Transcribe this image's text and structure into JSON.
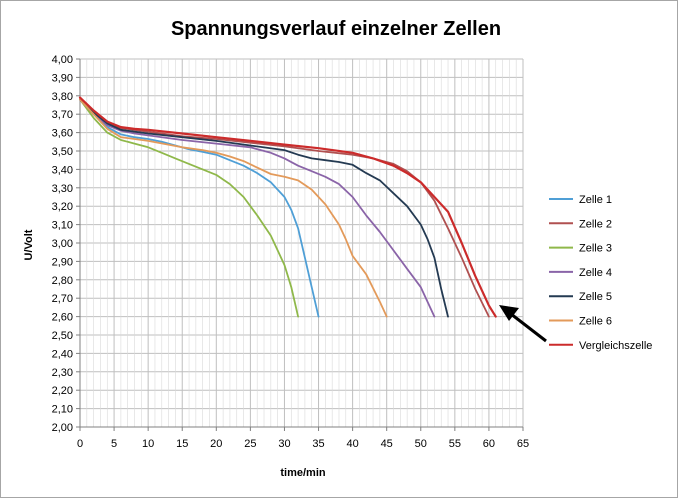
{
  "chart_data": {
    "type": "line",
    "title": "Spannungsverlauf einzelner Zellen",
    "xlabel": "time/min",
    "ylabel": "U/Volt",
    "xlim": [
      0,
      65
    ],
    "ylim": [
      2.0,
      4.0
    ],
    "x_ticks": [
      "0",
      "5",
      "10",
      "15",
      "20",
      "25",
      "30",
      "35",
      "40",
      "45",
      "50",
      "55",
      "60",
      "65"
    ],
    "y_ticks": [
      "2,00",
      "2,10",
      "2,20",
      "2,30",
      "2,40",
      "2,50",
      "2,60",
      "2,70",
      "2,80",
      "2,90",
      "3,00",
      "3,10",
      "3,20",
      "3,30",
      "3,40",
      "3,50",
      "3,60",
      "3,70",
      "3,80",
      "3,90",
      "4,00"
    ],
    "grid": true,
    "legend_position": "right",
    "series": [
      {
        "name": "Zelle 1",
        "color": "#4f9fd6",
        "points": [
          [
            0,
            3.78
          ],
          [
            2,
            3.7
          ],
          [
            4,
            3.63
          ],
          [
            6,
            3.59
          ],
          [
            8,
            3.575
          ],
          [
            10,
            3.565
          ],
          [
            12,
            3.55
          ],
          [
            14,
            3.53
          ],
          [
            16,
            3.51
          ],
          [
            18,
            3.495
          ],
          [
            20,
            3.48
          ],
          [
            22,
            3.45
          ],
          [
            24,
            3.42
          ],
          [
            26,
            3.38
          ],
          [
            28,
            3.33
          ],
          [
            30,
            3.25
          ],
          [
            31,
            3.18
          ],
          [
            32,
            3.08
          ],
          [
            33,
            2.92
          ],
          [
            34,
            2.76
          ],
          [
            35,
            2.6
          ]
        ]
      },
      {
        "name": "Zelle 2",
        "color": "#b05050",
        "points": [
          [
            0,
            3.78
          ],
          [
            2,
            3.71
          ],
          [
            4,
            3.65
          ],
          [
            6,
            3.625
          ],
          [
            8,
            3.615
          ],
          [
            10,
            3.605
          ],
          [
            15,
            3.58
          ],
          [
            20,
            3.565
          ],
          [
            25,
            3.545
          ],
          [
            30,
            3.525
          ],
          [
            35,
            3.5
          ],
          [
            40,
            3.48
          ],
          [
            43,
            3.46
          ],
          [
            46,
            3.43
          ],
          [
            48,
            3.39
          ],
          [
            50,
            3.33
          ],
          [
            52,
            3.23
          ],
          [
            54,
            3.08
          ],
          [
            56,
            2.92
          ],
          [
            58,
            2.75
          ],
          [
            60,
            2.6
          ]
        ]
      },
      {
        "name": "Zelle 3",
        "color": "#8fb84a",
        "points": [
          [
            0,
            3.78
          ],
          [
            2,
            3.68
          ],
          [
            4,
            3.6
          ],
          [
            6,
            3.56
          ],
          [
            8,
            3.54
          ],
          [
            10,
            3.52
          ],
          [
            12,
            3.49
          ],
          [
            14,
            3.46
          ],
          [
            16,
            3.43
          ],
          [
            18,
            3.4
          ],
          [
            20,
            3.37
          ],
          [
            22,
            3.32
          ],
          [
            24,
            3.25
          ],
          [
            26,
            3.15
          ],
          [
            28,
            3.04
          ],
          [
            30,
            2.88
          ],
          [
            31,
            2.76
          ],
          [
            32,
            2.6
          ]
        ]
      },
      {
        "name": "Zelle 4",
        "color": "#8a64a8",
        "points": [
          [
            0,
            3.78
          ],
          [
            2,
            3.7
          ],
          [
            4,
            3.64
          ],
          [
            6,
            3.61
          ],
          [
            8,
            3.595
          ],
          [
            10,
            3.585
          ],
          [
            15,
            3.56
          ],
          [
            20,
            3.54
          ],
          [
            25,
            3.52
          ],
          [
            28,
            3.49
          ],
          [
            30,
            3.46
          ],
          [
            32,
            3.42
          ],
          [
            34,
            3.39
          ],
          [
            36,
            3.36
          ],
          [
            38,
            3.32
          ],
          [
            40,
            3.25
          ],
          [
            42,
            3.15
          ],
          [
            44,
            3.06
          ],
          [
            46,
            2.96
          ],
          [
            48,
            2.86
          ],
          [
            50,
            2.76
          ],
          [
            52,
            2.6
          ]
        ]
      },
      {
        "name": "Zelle 5",
        "color": "#243a52",
        "points": [
          [
            0,
            3.78
          ],
          [
            2,
            3.71
          ],
          [
            4,
            3.65
          ],
          [
            6,
            3.615
          ],
          [
            8,
            3.605
          ],
          [
            10,
            3.595
          ],
          [
            15,
            3.575
          ],
          [
            20,
            3.555
          ],
          [
            25,
            3.53
          ],
          [
            30,
            3.505
          ],
          [
            32,
            3.48
          ],
          [
            34,
            3.46
          ],
          [
            36,
            3.45
          ],
          [
            38,
            3.44
          ],
          [
            40,
            3.425
          ],
          [
            42,
            3.38
          ],
          [
            44,
            3.34
          ],
          [
            46,
            3.27
          ],
          [
            48,
            3.2
          ],
          [
            50,
            3.1
          ],
          [
            51,
            3.02
          ],
          [
            52,
            2.92
          ],
          [
            53,
            2.75
          ],
          [
            54,
            2.6
          ]
        ]
      },
      {
        "name": "Zelle 6",
        "color": "#e39a5a",
        "points": [
          [
            0,
            3.78
          ],
          [
            2,
            3.7
          ],
          [
            4,
            3.62
          ],
          [
            6,
            3.575
          ],
          [
            8,
            3.565
          ],
          [
            10,
            3.555
          ],
          [
            15,
            3.52
          ],
          [
            18,
            3.505
          ],
          [
            20,
            3.49
          ],
          [
            22,
            3.47
          ],
          [
            24,
            3.445
          ],
          [
            26,
            3.41
          ],
          [
            28,
            3.375
          ],
          [
            30,
            3.36
          ],
          [
            32,
            3.34
          ],
          [
            34,
            3.29
          ],
          [
            36,
            3.21
          ],
          [
            38,
            3.1
          ],
          [
            39,
            3.02
          ],
          [
            40,
            2.93
          ],
          [
            42,
            2.83
          ],
          [
            44,
            2.68
          ],
          [
            45,
            2.6
          ]
        ]
      },
      {
        "name": "Vergleichszelle",
        "color": "#cc2b2b",
        "points": [
          [
            0,
            3.79
          ],
          [
            2,
            3.72
          ],
          [
            4,
            3.66
          ],
          [
            6,
            3.63
          ],
          [
            8,
            3.62
          ],
          [
            10,
            3.615
          ],
          [
            15,
            3.595
          ],
          [
            20,
            3.575
          ],
          [
            25,
            3.555
          ],
          [
            30,
            3.535
          ],
          [
            35,
            3.515
          ],
          [
            40,
            3.49
          ],
          [
            43,
            3.46
          ],
          [
            46,
            3.42
          ],
          [
            48,
            3.38
          ],
          [
            50,
            3.33
          ],
          [
            52,
            3.25
          ],
          [
            54,
            3.17
          ],
          [
            56,
            3.0
          ],
          [
            58,
            2.82
          ],
          [
            60,
            2.66
          ],
          [
            61,
            2.6
          ]
        ]
      }
    ]
  }
}
